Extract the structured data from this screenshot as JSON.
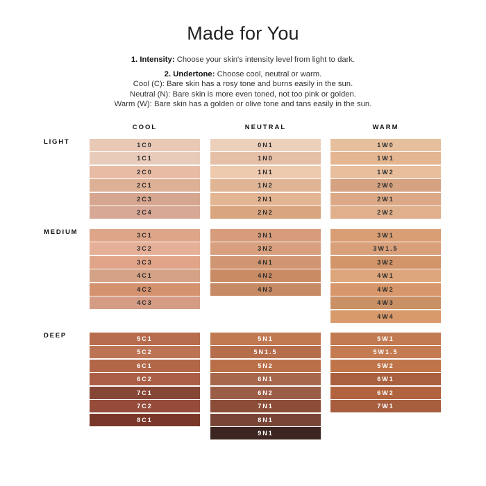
{
  "title": "Made for You",
  "intro": {
    "intensity_label": "1. Intensity:",
    "intensity_text": " Choose your skin's intensity level from light to dark.",
    "undertone_label": "2. Undertone:",
    "undertone_text": " Choose cool, neutral or warm.",
    "cool_desc": "Cool (C): Bare skin has a rosy tone and burns easily in the sun.",
    "neutral_desc": "Neutral (N): Bare skin is more even toned, not too pink or golden.",
    "warm_desc": "Warm (W): Bare skin has a golden or olive tone and tans easily in the sun."
  },
  "columns": [
    "COOL",
    "NEUTRAL",
    "WARM"
  ],
  "groups": [
    {
      "label": "LIGHT",
      "cool": [
        [
          "1C0",
          "#e9c8b6"
        ],
        [
          "1C1",
          "#e9cbbb"
        ],
        [
          "2C0",
          "#e8bba5"
        ],
        [
          "2C1",
          "#ddb195"
        ],
        [
          "2C3",
          "#d6a690"
        ],
        [
          "2C4",
          "#d8a896"
        ]
      ],
      "neutral": [
        [
          "0N1",
          "#ecd0bc"
        ],
        [
          "1N0",
          "#e5bfa6"
        ],
        [
          "1N1",
          "#edc9ad"
        ],
        [
          "1N2",
          "#dfb596"
        ],
        [
          "2N1",
          "#e4b592"
        ],
        [
          "2N2",
          "#d9a57e"
        ]
      ],
      "warm": [
        [
          "1W0",
          "#e6bf9d"
        ],
        [
          "1W1",
          "#e4b692"
        ],
        [
          "1W2",
          "#e8be9c"
        ],
        [
          "2W0",
          "#d5a382"
        ],
        [
          "2W1",
          "#dba985"
        ],
        [
          "2W2",
          "#dfb08b"
        ]
      ]
    },
    {
      "label": "MEDIUM",
      "cool": [
        [
          "3C1",
          "#dea588"
        ],
        [
          "3C2",
          "#e6b098"
        ],
        [
          "3C3",
          "#e0a588"
        ],
        [
          "4C1",
          "#d4a286"
        ],
        [
          "4C2",
          "#d4926f"
        ],
        [
          "4C3",
          "#d49b85"
        ]
      ],
      "neutral": [
        [
          "3N1",
          "#d69c7b"
        ],
        [
          "3N2",
          "#d8a07e"
        ],
        [
          "4N1",
          "#d09672"
        ],
        [
          "4N2",
          "#c98b64"
        ],
        [
          "4N3",
          "#c68a64"
        ]
      ],
      "warm": [
        [
          "3W1",
          "#d99e74"
        ],
        [
          "3W1.5",
          "#d8a07b"
        ],
        [
          "3W2",
          "#d19569"
        ],
        [
          "4W1",
          "#dca57b"
        ],
        [
          "4W2",
          "#d8976a"
        ],
        [
          "4W3",
          "#c99066"
        ],
        [
          "4W4",
          "#d99a6b"
        ]
      ]
    },
    {
      "label": "DEEP",
      "cool": [
        [
          "5C1",
          "#b86c4e"
        ],
        [
          "5C2",
          "#bc7455"
        ],
        [
          "6C1",
          "#b26748"
        ],
        [
          "6C2",
          "#ab5e45"
        ],
        [
          "7C1",
          "#864636"
        ],
        [
          "7C2",
          "#954c3a"
        ],
        [
          "8C1",
          "#7a3628"
        ]
      ],
      "neutral": [
        [
          "5N1",
          "#c17951"
        ],
        [
          "5N1.5",
          "#b56d4c"
        ],
        [
          "5N2",
          "#bb6f48"
        ],
        [
          "6N1",
          "#a6674c"
        ],
        [
          "6N2",
          "#9c5d48"
        ],
        [
          "7N1",
          "#8b4d37"
        ],
        [
          "8N1",
          "#784436"
        ],
        [
          "9N1",
          "#3d2622"
        ]
      ],
      "warm": [
        [
          "5W1",
          "#c27a51"
        ],
        [
          "5W1.5",
          "#c47b52"
        ],
        [
          "5W2",
          "#bf7549"
        ],
        [
          "6W1",
          "#a8603e"
        ],
        [
          "6W2",
          "#b0633e"
        ],
        [
          "7W1",
          "#a65e3e"
        ]
      ]
    }
  ]
}
